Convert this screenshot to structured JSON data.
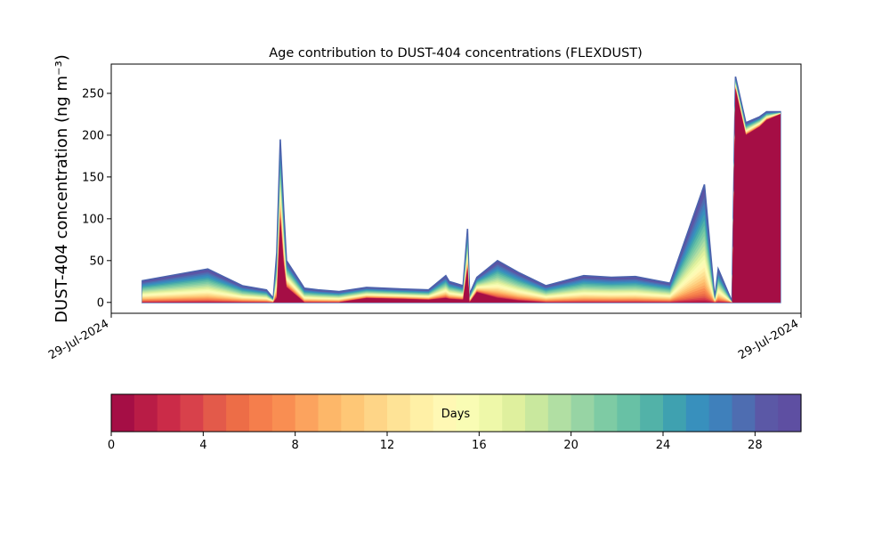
{
  "chart_data": {
    "type": "area",
    "title": "Age contribution to DUST-404 concentrations (FLEXDUST)",
    "ylabel": "DUST-404 concentration (ng m⁻³)",
    "xlabel": "",
    "ylim": [
      -13,
      285
    ],
    "yticks": [
      0,
      50,
      100,
      150,
      200,
      250
    ],
    "xlim": [
      0,
      1
    ],
    "xticks": [
      {
        "x": 0,
        "label": "29-Jul-2024"
      },
      {
        "x": 1,
        "label": "29-Jul-2024"
      }
    ],
    "grid": false,
    "x": [
      0.045,
      0.14,
      0.19,
      0.225,
      0.235,
      0.24,
      0.245,
      0.25,
      0.254,
      0.28,
      0.3,
      0.33,
      0.37,
      0.425,
      0.46,
      0.485,
      0.49,
      0.51,
      0.5165,
      0.5195,
      0.53,
      0.56,
      0.59,
      0.63,
      0.685,
      0.725,
      0.76,
      0.81,
      0.86,
      0.875,
      0.88,
      0.9,
      0.905,
      0.92,
      0.94,
      0.95,
      0.97
    ],
    "total": [
      26,
      40,
      20,
      15,
      5,
      60,
      195,
      110,
      50,
      17,
      15,
      13,
      18,
      16,
      15,
      32,
      25,
      20,
      88,
      10,
      30,
      50,
      36,
      20,
      32,
      30,
      31,
      23,
      141,
      5,
      40,
      1,
      270,
      215,
      222,
      228,
      228
    ],
    "fresh": [
      0,
      0,
      0,
      0,
      0,
      5,
      100,
      45,
      18,
      0,
      0,
      0,
      5,
      4,
      3,
      5,
      4,
      3,
      40,
      0,
      12,
      5,
      2,
      0,
      0,
      0,
      0,
      0,
      0,
      0,
      0,
      0,
      255,
      200,
      210,
      218,
      225
    ],
    "age_bands": 30,
    "colorbar": {
      "label": "Days",
      "min": 0,
      "max": 30,
      "ticks": [
        0,
        4,
        8,
        12,
        16,
        20,
        24,
        28
      ],
      "colors": [
        "#a50e45",
        "#b91c46",
        "#cb2b48",
        "#d8414b",
        "#e35a4a",
        "#ed6d47",
        "#f57e4c",
        "#f98e52",
        "#fca35e",
        "#fdb769",
        "#fec776",
        "#fed587",
        "#fee396",
        "#fff0a6",
        "#fff8b4",
        "#f9fcb4",
        "#eef8a9",
        "#dff09e",
        "#c9e89e",
        "#b1dfa3",
        "#97d4a4",
        "#7ecba4",
        "#68c1a5",
        "#52b2a8",
        "#3fa1b0",
        "#3890bd",
        "#3f80bb",
        "#4e6db1",
        "#5b58a6",
        "#5e4fa2"
      ]
    }
  }
}
